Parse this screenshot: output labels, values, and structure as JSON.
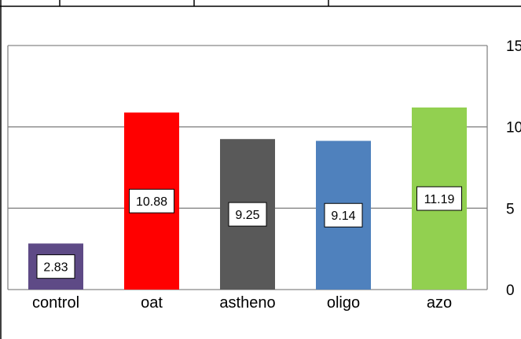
{
  "chart_data": {
    "type": "bar",
    "title": "",
    "xlabel": "",
    "ylabel": "",
    "categories": [
      "control",
      "oat",
      "astheno",
      "oligo",
      "azo"
    ],
    "values": [
      2.83,
      10.88,
      9.25,
      9.14,
      11.19
    ],
    "value_labels": [
      "2.83",
      "10.88",
      "9.25",
      "9.14",
      "11.19"
    ],
    "bar_colors": [
      "#5e4a86",
      "#ff0000",
      "#595959",
      "#4f81bd",
      "#92d050"
    ],
    "ylim": [
      0,
      15
    ],
    "yticks": [
      0,
      5,
      10,
      15
    ],
    "ytick_labels": [
      "0",
      "5",
      "10",
      "15"
    ],
    "y_axis_side": "right",
    "grid": true,
    "legend": "none"
  },
  "colors": {
    "gridline": "#868686",
    "border": "#000000",
    "label_box_bg": "#ffffff"
  }
}
